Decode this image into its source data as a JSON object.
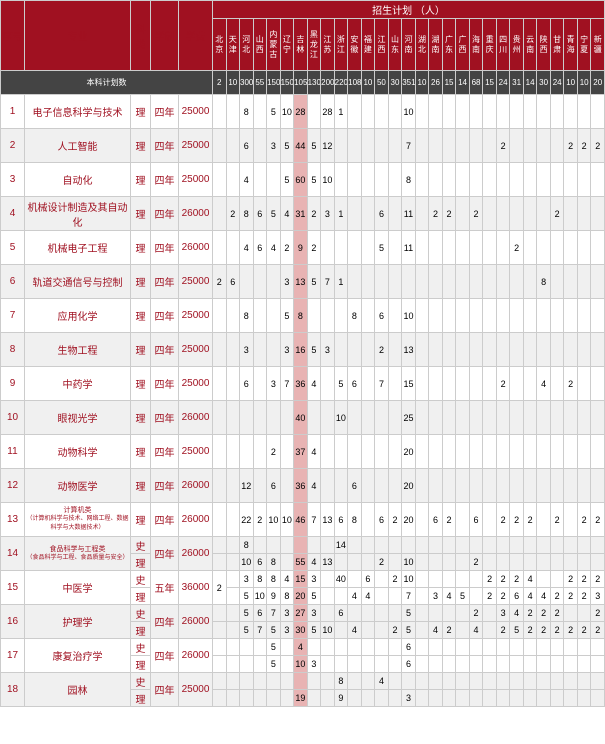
{
  "headers": {
    "seq": "序号",
    "major": "专业",
    "kelei": "科类",
    "xuezhi": "学制",
    "xuefei": "学费",
    "plan": "招生计划  （人）"
  },
  "provinces": [
    "北京",
    "天津",
    "河北",
    "山西",
    "内蒙古",
    "辽宁",
    "吉林",
    "黑龙江",
    "江苏",
    "浙江",
    "安徽",
    "福建",
    "江西",
    "山东",
    "河南",
    "湖北",
    "湖南",
    "广东",
    "广西",
    "海南",
    "重庆",
    "四川",
    "贵州",
    "云南",
    "陕西",
    "甘肃",
    "青海",
    "宁夏",
    "新疆"
  ],
  "totals_label": "本科计划数",
  "totals": [
    "2",
    "10",
    "300",
    "55",
    "150",
    "150",
    "105",
    "130",
    "200",
    "220",
    "108",
    "10",
    "50",
    "30",
    "351",
    "10",
    "26",
    "15",
    "14",
    "68",
    "15",
    "24",
    "31",
    "14",
    "30",
    "24",
    "10",
    "10",
    "20"
  ],
  "highlight_col": 6,
  "colors": {
    "header_bg": "#a01121",
    "header_fg": "#ffffff",
    "totals_bg": "#444444",
    "alt_bg": "#f0f0f0",
    "highlight_bg": "#e8b3b3",
    "accent": "#a01121",
    "border": "#cccccc"
  },
  "rows": [
    {
      "idx": "1",
      "major": "电子信息科学与技术",
      "kelei": "理",
      "xuezhi": "四年",
      "xuefei": "25000",
      "subs": [
        [
          "",
          "",
          "8",
          "",
          "5",
          "10",
          "28",
          "",
          "28",
          "1",
          "",
          "",
          "",
          "",
          "10",
          "",
          "",
          "",
          "",
          "",
          "",
          "",
          "",
          "",
          "",
          "",
          "",
          "",
          ""
        ]
      ]
    },
    {
      "idx": "2",
      "major": "人工智能",
      "kelei": "理",
      "xuezhi": "四年",
      "xuefei": "25000",
      "subs": [
        [
          "",
          "",
          "6",
          "",
          "3",
          "5",
          "44",
          "5",
          "12",
          "",
          "",
          "",
          "",
          "",
          "7",
          "",
          "",
          "",
          "",
          "",
          "",
          "2",
          "",
          "",
          "",
          "",
          "2",
          "2",
          "2"
        ]
      ]
    },
    {
      "idx": "3",
      "major": "自动化",
      "kelei": "理",
      "xuezhi": "四年",
      "xuefei": "25000",
      "subs": [
        [
          "",
          "",
          "4",
          "",
          "",
          "5",
          "60",
          "5",
          "10",
          "",
          "",
          "",
          "",
          "",
          "8",
          "",
          "",
          "",
          "",
          "",
          "",
          "",
          "",
          "",
          "",
          "",
          "",
          "",
          ""
        ]
      ]
    },
    {
      "idx": "4",
      "major": "机械设计制造及其自动化",
      "kelei": "理",
      "xuezhi": "四年",
      "xuefei": "26000",
      "subs": [
        [
          "",
          "2",
          "8",
          "6",
          "5",
          "4",
          "31",
          "2",
          "3",
          "1",
          "",
          "",
          "6",
          "",
          "11",
          "",
          "2",
          "2",
          "",
          "2",
          "",
          "",
          "",
          "",
          "",
          "2",
          "",
          "",
          ""
        ]
      ]
    },
    {
      "idx": "5",
      "major": "机械电子工程",
      "kelei": "理",
      "xuezhi": "四年",
      "xuefei": "26000",
      "subs": [
        [
          "",
          "",
          "4",
          "6",
          "4",
          "2",
          "9",
          "2",
          "",
          "",
          "",
          "",
          "5",
          "",
          "11",
          "",
          "",
          "",
          "",
          "",
          "",
          "",
          "2",
          "",
          "",
          "",
          "",
          "",
          ""
        ]
      ]
    },
    {
      "idx": "6",
      "major": "轨道交通信号与控制",
      "kelei": "理",
      "xuezhi": "四年",
      "xuefei": "25000",
      "subs": [
        [
          "2",
          "6",
          "",
          "",
          "",
          "3",
          "13",
          "5",
          "7",
          "1",
          "",
          "",
          "",
          "",
          "",
          "",
          "",
          "",
          "",
          "",
          "",
          "",
          "",
          "",
          "8",
          "",
          "",
          "",
          ""
        ]
      ]
    },
    {
      "idx": "7",
      "major": "应用化学",
      "kelei": "理",
      "xuezhi": "四年",
      "xuefei": "25000",
      "subs": [
        [
          "",
          "",
          "8",
          "",
          "",
          "5",
          "8",
          "",
          "",
          "",
          "8",
          "",
          "6",
          "",
          "10",
          "",
          "",
          "",
          "",
          "",
          "",
          "",
          "",
          "",
          "",
          "",
          "",
          "",
          ""
        ]
      ]
    },
    {
      "idx": "8",
      "major": "生物工程",
      "kelei": "理",
      "xuezhi": "四年",
      "xuefei": "25000",
      "subs": [
        [
          "",
          "",
          "3",
          "",
          "",
          "3",
          "16",
          "5",
          "3",
          "",
          "",
          "",
          "2",
          "",
          "13",
          "",
          "",
          "",
          "",
          "",
          "",
          "",
          "",
          "",
          "",
          "",
          "",
          "",
          ""
        ]
      ]
    },
    {
      "idx": "9",
      "major": "中药学",
      "kelei": "理",
      "xuezhi": "四年",
      "xuefei": "25000",
      "subs": [
        [
          "",
          "",
          "6",
          "",
          "3",
          "7",
          "36",
          "4",
          "",
          "5",
          "6",
          "",
          "7",
          "",
          "15",
          "",
          "",
          "",
          "",
          "",
          "",
          "2",
          "",
          "",
          "4",
          "",
          "2",
          "",
          ""
        ]
      ]
    },
    {
      "idx": "10",
      "major": "眼视光学",
      "kelei": "理",
      "xuezhi": "四年",
      "xuefei": "26000",
      "subs": [
        [
          "",
          "",
          "",
          "",
          "",
          "",
          "40",
          "",
          "",
          "10",
          "",
          "",
          "",
          "",
          "25",
          "",
          "",
          "",
          "",
          "",
          "",
          "",
          "",
          "",
          "",
          "",
          "",
          "",
          ""
        ]
      ]
    },
    {
      "idx": "11",
      "major": "动物科学",
      "kelei": "理",
      "xuezhi": "四年",
      "xuefei": "25000",
      "subs": [
        [
          "",
          "",
          "",
          "",
          "2",
          "",
          "37",
          "4",
          "",
          "",
          "",
          "",
          "",
          "",
          "20",
          "",
          "",
          "",
          "",
          "",
          "",
          "",
          "",
          "",
          "",
          "",
          "",
          "",
          ""
        ]
      ]
    },
    {
      "idx": "12",
      "major": "动物医学",
      "kelei": "理",
      "xuezhi": "四年",
      "xuefei": "26000",
      "subs": [
        [
          "",
          "",
          "12",
          "",
          "6",
          "",
          "36",
          "4",
          "",
          "",
          "6",
          "",
          "",
          "",
          "20",
          "",
          "",
          "",
          "",
          "",
          "",
          "",
          "",
          "",
          "",
          "",
          "",
          "",
          ""
        ]
      ]
    },
    {
      "idx": "13",
      "major": "计算机类",
      "sub": "（计算机科学与技术、网络工程、数据科学与大数据技术）",
      "kelei": "理",
      "xuezhi": "四年",
      "xuefei": "26000",
      "subs": [
        [
          "",
          "",
          "22",
          "2",
          "10",
          "10",
          "46",
          "7",
          "13",
          "6",
          "8",
          "",
          "6",
          "2",
          "20",
          "",
          "6",
          "2",
          "",
          "6",
          "",
          "2",
          "2",
          "2",
          "",
          "2",
          "",
          "2",
          "2"
        ]
      ]
    },
    {
      "idx": "14",
      "major": "食品科学与工程类",
      "sub": "（食品科学与工程、食品质量与安全）",
      "kelei": [
        "史",
        "理"
      ],
      "xuezhi": "四年",
      "xuefei": "26000",
      "merged": true,
      "subs": [
        [
          "",
          "",
          "8",
          "",
          "",
          "",
          "",
          "",
          "",
          "14",
          "",
          "",
          "",
          "",
          "",
          "",
          "",
          "",
          "",
          "",
          "",
          "",
          "",
          "",
          "",
          "",
          "",
          "",
          ""
        ],
        [
          "",
          "",
          "10",
          "6",
          "8",
          "",
          "55",
          "4",
          "13",
          "",
          "",
          "",
          "2",
          "",
          "10",
          "",
          "",
          "",
          "",
          "2",
          "",
          "",
          "",
          "",
          "",
          "",
          "",
          "",
          ""
        ]
      ]
    },
    {
      "idx": "15",
      "major": "中医学",
      "kelei": [
        "史",
        "理"
      ],
      "xuezhi": "五年",
      "xuefei": "36000",
      "fixed0": "2",
      "merged": true,
      "subs": [
        [
          "",
          "",
          "3",
          "8",
          "8",
          "4",
          "15",
          "3",
          "",
          "40",
          "",
          "6",
          "",
          "2",
          "10",
          "",
          "",
          "",
          "",
          "",
          "2",
          "2",
          "2",
          "4",
          "",
          "",
          "2",
          "2",
          "2"
        ],
        [
          "",
          "",
          "5",
          "10",
          "9",
          "8",
          "20",
          "5",
          "",
          "",
          "4",
          "4",
          "",
          "",
          "7",
          "",
          "3",
          "4",
          "5",
          "",
          "2",
          "2",
          "6",
          "4",
          "4",
          "2",
          "2",
          "2",
          "3"
        ]
      ]
    },
    {
      "idx": "16",
      "major": "护理学",
      "kelei": [
        "史",
        "理"
      ],
      "xuezhi": "四年",
      "xuefei": "26000",
      "merged": true,
      "subs": [
        [
          "",
          "",
          "5",
          "6",
          "7",
          "3",
          "27",
          "3",
          "",
          "6",
          "",
          "",
          "",
          "",
          "5",
          "",
          "",
          "",
          "",
          "2",
          "",
          "3",
          "4",
          "2",
          "2",
          "2",
          "",
          "",
          "2"
        ],
        [
          "",
          "",
          "5",
          "7",
          "5",
          "3",
          "30",
          "5",
          "10",
          "",
          "4",
          "",
          "",
          "2",
          "5",
          "",
          "4",
          "2",
          "",
          "4",
          "",
          "2",
          "5",
          "2",
          "2",
          "2",
          "2",
          "2",
          "2"
        ]
      ]
    },
    {
      "idx": "17",
      "major": "康复治疗学",
      "kelei": [
        "史",
        "理"
      ],
      "xuezhi": "四年",
      "xuefei": "26000",
      "merged": true,
      "subs": [
        [
          "",
          "",
          "",
          "",
          "5",
          "",
          "4",
          "",
          "",
          "",
          "",
          "",
          "",
          "",
          "6",
          "",
          "",
          "",
          "",
          "",
          "",
          "",
          "",
          "",
          "",
          "",
          "",
          "",
          ""
        ],
        [
          "",
          "",
          "",
          "",
          "5",
          "",
          "10",
          "3",
          "",
          "",
          "",
          "",
          "",
          "",
          "6",
          "",
          "",
          "",
          "",
          "",
          "",
          "",
          "",
          "",
          "",
          "",
          "",
          "",
          ""
        ]
      ]
    },
    {
      "idx": "18",
      "major": "园林",
      "kelei": [
        "史",
        "理"
      ],
      "xuezhi": "四年",
      "xuefei": "25000",
      "merged": true,
      "subs": [
        [
          "",
          "",
          "",
          "",
          "",
          "",
          "",
          "",
          "",
          "8",
          "",
          "",
          "4",
          "",
          "",
          "",
          "",
          "",
          "",
          "",
          "",
          "",
          "",
          "",
          "",
          "",
          "",
          "",
          ""
        ],
        [
          "",
          "",
          "",
          "",
          "",
          "",
          "19",
          "",
          "",
          "9",
          "",
          "",
          "",
          "",
          "3",
          "",
          "",
          "",
          "",
          "",
          "",
          "",
          "",
          "",
          "",
          "",
          "",
          "",
          ""
        ]
      ]
    }
  ]
}
